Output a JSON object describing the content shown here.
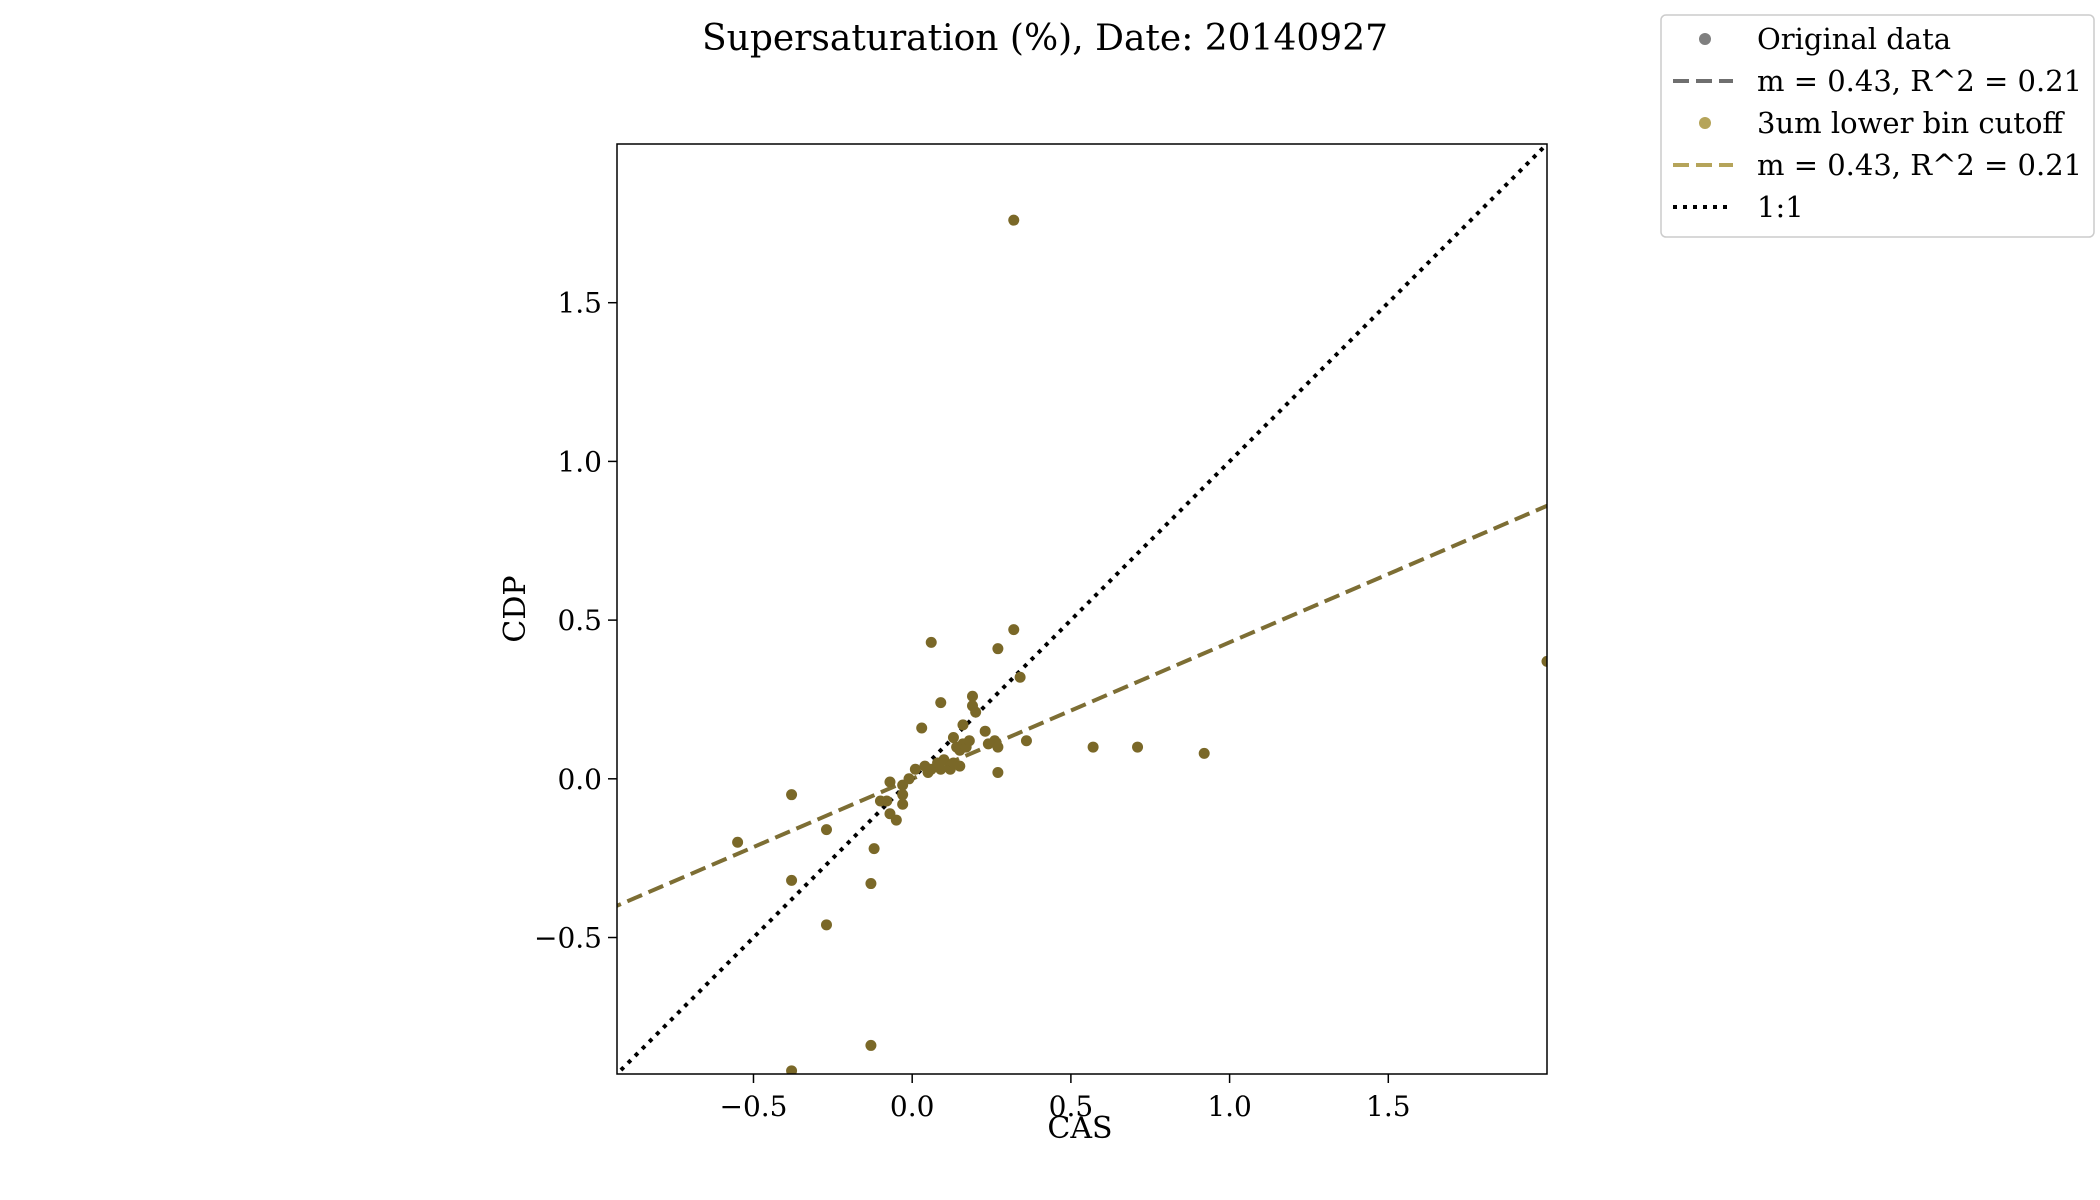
{
  "chart_data": {
    "type": "scatter",
    "title": "Supersaturation (%), Date: 20140927",
    "xlabel": "CAS",
    "ylabel": "CDP",
    "xlim": [
      -0.93,
      2.0
    ],
    "ylim": [
      -0.93,
      2.0
    ],
    "xticks": [
      -0.5,
      0.0,
      0.5,
      1.0,
      1.5
    ],
    "yticks": [
      -0.5,
      0.0,
      0.5,
      1.0,
      1.5
    ],
    "xtick_labels": [
      "−0.5",
      "0.0",
      "0.5",
      "1.0",
      "1.5"
    ],
    "ytick_labels": [
      "−0.5",
      "0.0",
      "0.5",
      "1.0",
      "1.5"
    ],
    "grid": false,
    "legend_position": "outside top-right",
    "colors": {
      "original": "#7f7f7f",
      "cutoff_fill": "#c2b266",
      "points": "#7a6828",
      "fit_line": "#7d6e34",
      "one_to_one": "#000000"
    },
    "legend": [
      {
        "label": "Original data",
        "kind": "marker",
        "color": "#7f7f7f"
      },
      {
        "label": "m = 0.43, R^2 = 0.21",
        "kind": "dashed",
        "color": "#6f6f6f"
      },
      {
        "label": "3um lower bin cutoff",
        "kind": "marker",
        "color": "#b5a45a"
      },
      {
        "label": "m = 0.43, R^2 = 0.21",
        "kind": "dashed",
        "color": "#b5a45a"
      },
      {
        "label": "1:1",
        "kind": "dotted",
        "color": "#000000"
      }
    ],
    "fit": {
      "slope": 0.43,
      "intercept": 0.0,
      "r2": 0.21
    },
    "one_to_one": {
      "slope": 1.0,
      "intercept": 0.0
    },
    "series": [
      {
        "name": "3um lower bin cutoff",
        "points": [
          [
            0.32,
            1.76
          ],
          [
            -0.55,
            -0.2
          ],
          [
            -0.38,
            -0.05
          ],
          [
            -0.38,
            -0.32
          ],
          [
            -0.27,
            -0.16
          ],
          [
            -0.27,
            -0.46
          ],
          [
            -0.13,
            -0.33
          ],
          [
            -0.12,
            -0.22
          ],
          [
            -0.13,
            -0.84
          ],
          [
            -0.38,
            -0.92
          ],
          [
            -0.1,
            -0.07
          ],
          [
            -0.08,
            -0.07
          ],
          [
            -0.07,
            -0.11
          ],
          [
            -0.07,
            -0.01
          ],
          [
            -0.05,
            -0.13
          ],
          [
            -0.03,
            -0.02
          ],
          [
            -0.03,
            -0.05
          ],
          [
            -0.03,
            -0.08
          ],
          [
            -0.01,
            0.0
          ],
          [
            0.01,
            0.03
          ],
          [
            0.03,
            0.16
          ],
          [
            0.04,
            0.04
          ],
          [
            0.05,
            0.02
          ],
          [
            0.06,
            0.03
          ],
          [
            0.06,
            0.43
          ],
          [
            0.08,
            0.05
          ],
          [
            0.09,
            0.03
          ],
          [
            0.09,
            0.24
          ],
          [
            0.1,
            0.06
          ],
          [
            0.12,
            0.04
          ],
          [
            0.12,
            0.03
          ],
          [
            0.13,
            0.05
          ],
          [
            0.13,
            0.13
          ],
          [
            0.14,
            0.1
          ],
          [
            0.15,
            0.04
          ],
          [
            0.15,
            0.09
          ],
          [
            0.16,
            0.11
          ],
          [
            0.16,
            0.17
          ],
          [
            0.17,
            0.1
          ],
          [
            0.18,
            0.12
          ],
          [
            0.19,
            0.26
          ],
          [
            0.19,
            0.23
          ],
          [
            0.2,
            0.21
          ],
          [
            0.23,
            0.15
          ],
          [
            0.24,
            0.11
          ],
          [
            0.26,
            0.12
          ],
          [
            0.27,
            0.41
          ],
          [
            0.27,
            0.1
          ],
          [
            0.27,
            0.02
          ],
          [
            0.32,
            0.47
          ],
          [
            0.34,
            0.32
          ],
          [
            0.36,
            0.12
          ],
          [
            0.57,
            0.1
          ],
          [
            0.71,
            0.1
          ],
          [
            0.92,
            0.08
          ],
          [
            2.0,
            0.37
          ]
        ]
      }
    ]
  }
}
